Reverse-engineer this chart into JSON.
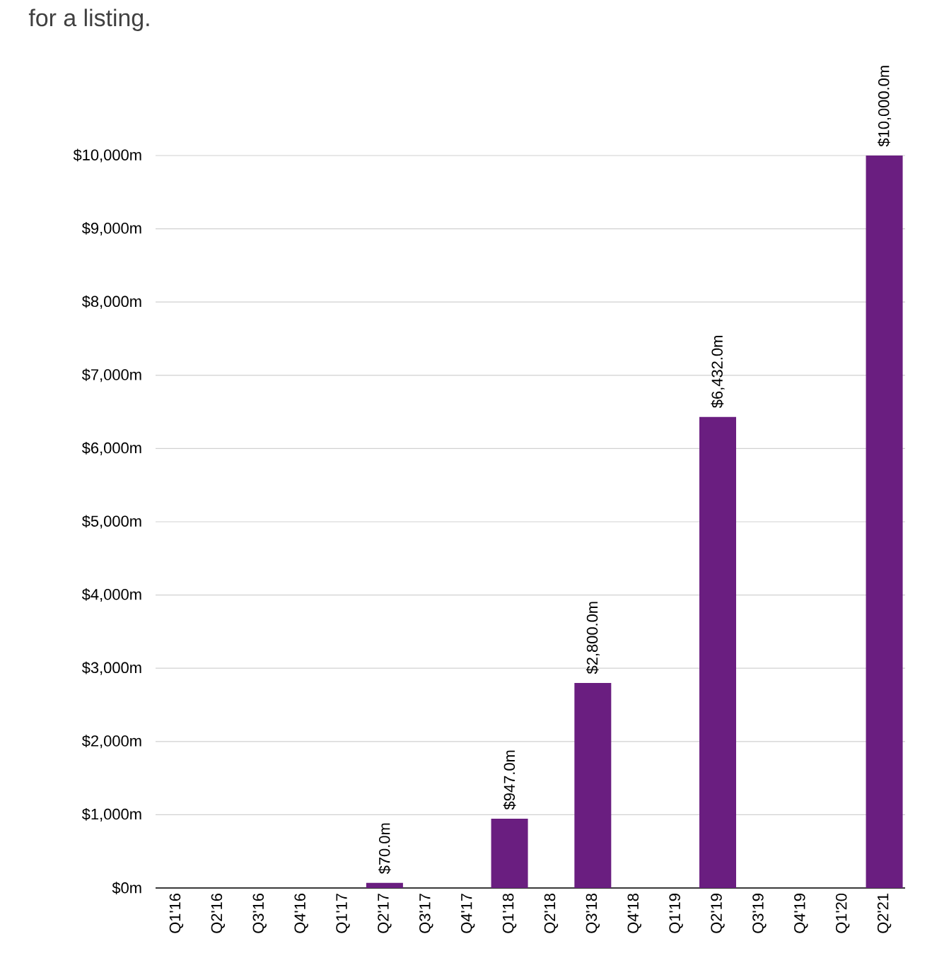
{
  "chart_data": {
    "type": "bar",
    "title": "for a listing.",
    "categories": [
      "Q1'16",
      "Q2'16",
      "Q3'16",
      "Q4'16",
      "Q1'17",
      "Q2'17",
      "Q3'17",
      "Q4'17",
      "Q1'18",
      "Q2'18",
      "Q3'18",
      "Q4'18",
      "Q1'19",
      "Q2'19",
      "Q3'19",
      "Q4'19",
      "Q1'20",
      "Q2'21"
    ],
    "values": [
      0,
      0,
      0,
      0,
      0,
      70,
      0,
      0,
      947,
      0,
      2800,
      0,
      0,
      6432,
      0,
      0,
      0,
      10000
    ],
    "value_labels": [
      null,
      null,
      null,
      null,
      null,
      "$70.0m",
      null,
      null,
      "$947.0m",
      null,
      "$2,800.0m",
      null,
      null,
      "$6,432.0m",
      null,
      null,
      null,
      "$10,000.0m"
    ],
    "color": "#6a1e80",
    "ylim": [
      0,
      10000
    ],
    "yticks": [
      {
        "value": 0,
        "label": "$0m"
      },
      {
        "value": 1000,
        "label": "$1,000m"
      },
      {
        "value": 2000,
        "label": "$2,000m"
      },
      {
        "value": 3000,
        "label": "$3,000m"
      },
      {
        "value": 4000,
        "label": "$4,000m"
      },
      {
        "value": 5000,
        "label": "$5,000m"
      },
      {
        "value": 6000,
        "label": "$6,000m"
      },
      {
        "value": 7000,
        "label": "$7,000m"
      },
      {
        "value": 8000,
        "label": "$8,000m"
      },
      {
        "value": 9000,
        "label": "$9,000m"
      },
      {
        "value": 10000,
        "label": "$10,000m"
      }
    ],
    "grid": "y"
  }
}
